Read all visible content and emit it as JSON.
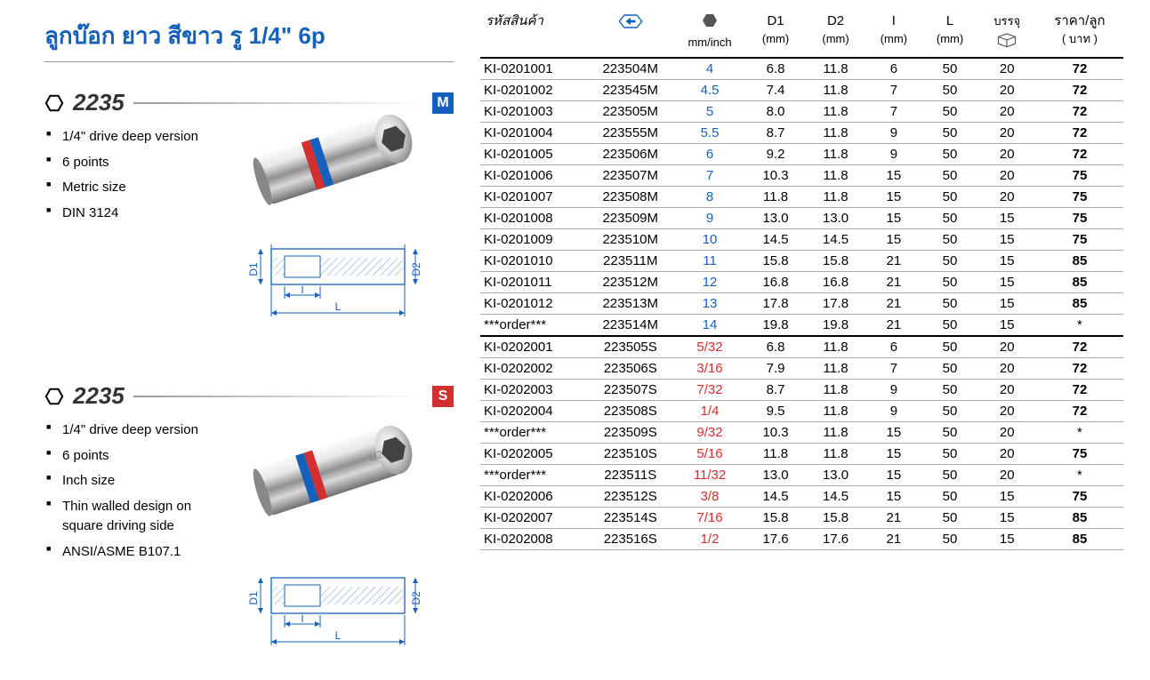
{
  "title": "ลูกบ๊อก ยาว สีขาว รู 1/4\" 6p",
  "products": [
    {
      "number": "2235",
      "badge": "M",
      "badge_class": "badge-m",
      "bullets": [
        "1/4\" drive deep version",
        "6 points",
        "Metric size",
        "DIN 3124"
      ]
    },
    {
      "number": "2235",
      "badge": "S",
      "badge_class": "badge-s",
      "bullets": [
        "1/4\" drive deep version",
        "6 points",
        "Inch size",
        "Thin walled design on square driving side",
        "ANSI/ASME B107.1"
      ]
    }
  ],
  "table": {
    "headers": {
      "code": "รหัสสินค้า",
      "size_top": "",
      "size_sub": "mm/inch",
      "d1": "D1",
      "d1_sub": "(mm)",
      "d2": "D2",
      "d2_sub": "(mm)",
      "i": "I",
      "i_sub": "(mm)",
      "l": "L",
      "l_sub": "(mm)",
      "pack": "บรรจุ",
      "price": "ราคา/ลูก",
      "price_sub": "( บาท )"
    },
    "rows_metric": [
      {
        "code": "KI-0201001",
        "pn": "223504M",
        "size": "4",
        "d1": "6.8",
        "d2": "11.8",
        "i": "6",
        "l": "50",
        "pack": "20",
        "price": "72"
      },
      {
        "code": "KI-0201002",
        "pn": "223545M",
        "size": "4.5",
        "d1": "7.4",
        "d2": "11.8",
        "i": "7",
        "l": "50",
        "pack": "20",
        "price": "72"
      },
      {
        "code": "KI-0201003",
        "pn": "223505M",
        "size": "5",
        "d1": "8.0",
        "d2": "11.8",
        "i": "7",
        "l": "50",
        "pack": "20",
        "price": "72"
      },
      {
        "code": "KI-0201004",
        "pn": "223555M",
        "size": "5.5",
        "d1": "8.7",
        "d2": "11.8",
        "i": "9",
        "l": "50",
        "pack": "20",
        "price": "72"
      },
      {
        "code": "KI-0201005",
        "pn": "223506M",
        "size": "6",
        "d1": "9.2",
        "d2": "11.8",
        "i": "9",
        "l": "50",
        "pack": "20",
        "price": "72"
      },
      {
        "code": "KI-0201006",
        "pn": "223507M",
        "size": "7",
        "d1": "10.3",
        "d2": "11.8",
        "i": "15",
        "l": "50",
        "pack": "20",
        "price": "75"
      },
      {
        "code": "KI-0201007",
        "pn": "223508M",
        "size": "8",
        "d1": "11.8",
        "d2": "11.8",
        "i": "15",
        "l": "50",
        "pack": "20",
        "price": "75"
      },
      {
        "code": "KI-0201008",
        "pn": "223509M",
        "size": "9",
        "d1": "13.0",
        "d2": "13.0",
        "i": "15",
        "l": "50",
        "pack": "15",
        "price": "75"
      },
      {
        "code": "KI-0201009",
        "pn": "223510M",
        "size": "10",
        "d1": "14.5",
        "d2": "14.5",
        "i": "15",
        "l": "50",
        "pack": "15",
        "price": "75"
      },
      {
        "code": "KI-0201010",
        "pn": "223511M",
        "size": "11",
        "d1": "15.8",
        "d2": "15.8",
        "i": "21",
        "l": "50",
        "pack": "15",
        "price": "85"
      },
      {
        "code": "KI-0201011",
        "pn": "223512M",
        "size": "12",
        "d1": "16.8",
        "d2": "16.8",
        "i": "21",
        "l": "50",
        "pack": "15",
        "price": "85"
      },
      {
        "code": "KI-0201012",
        "pn": "223513M",
        "size": "13",
        "d1": "17.8",
        "d2": "17.8",
        "i": "21",
        "l": "50",
        "pack": "15",
        "price": "85"
      },
      {
        "code": "***order***",
        "pn": "223514M",
        "size": "14",
        "d1": "19.8",
        "d2": "19.8",
        "i": "21",
        "l": "50",
        "pack": "15",
        "price": "*"
      }
    ],
    "rows_inch": [
      {
        "code": "KI-0202001",
        "pn": "223505S",
        "size": "5/32",
        "d1": "6.8",
        "d2": "11.8",
        "i": "6",
        "l": "50",
        "pack": "20",
        "price": "72"
      },
      {
        "code": "KI-0202002",
        "pn": "223506S",
        "size": "3/16",
        "d1": "7.9",
        "d2": "11.8",
        "i": "7",
        "l": "50",
        "pack": "20",
        "price": "72"
      },
      {
        "code": "KI-0202003",
        "pn": "223507S",
        "size": "7/32",
        "d1": "8.7",
        "d2": "11.8",
        "i": "9",
        "l": "50",
        "pack": "20",
        "price": "72"
      },
      {
        "code": "KI-0202004",
        "pn": "223508S",
        "size": "1/4",
        "d1": "9.5",
        "d2": "11.8",
        "i": "9",
        "l": "50",
        "pack": "20",
        "price": "72"
      },
      {
        "code": "***order***",
        "pn": "223509S",
        "size": "9/32",
        "d1": "10.3",
        "d2": "11.8",
        "i": "15",
        "l": "50",
        "pack": "20",
        "price": "*"
      },
      {
        "code": "KI-0202005",
        "pn": "223510S",
        "size": "5/16",
        "d1": "11.8",
        "d2": "11.8",
        "i": "15",
        "l": "50",
        "pack": "20",
        "price": "75"
      },
      {
        "code": "***order***",
        "pn": "223511S",
        "size": "11/32",
        "d1": "13.0",
        "d2": "13.0",
        "i": "15",
        "l": "50",
        "pack": "20",
        "price": "*"
      },
      {
        "code": "KI-0202006",
        "pn": "223512S",
        "size": "3/8",
        "d1": "14.5",
        "d2": "14.5",
        "i": "15",
        "l": "50",
        "pack": "15",
        "price": "75"
      },
      {
        "code": "KI-0202007",
        "pn": "223514S",
        "size": "7/16",
        "d1": "15.8",
        "d2": "15.8",
        "i": "21",
        "l": "50",
        "pack": "15",
        "price": "85"
      },
      {
        "code": "KI-0202008",
        "pn": "223516S",
        "size": "1/2",
        "d1": "17.6",
        "d2": "17.6",
        "i": "21",
        "l": "50",
        "pack": "15",
        "price": "85"
      }
    ]
  },
  "colors": {
    "blue": "#1560bd",
    "red": "#d32f2f",
    "chrome_light": "#f5f5f5",
    "chrome_mid": "#c8c8c8",
    "chrome_dark": "#808080"
  },
  "diagram_labels": {
    "d1": "D1",
    "d2": "D2",
    "i": "I",
    "l": "L"
  }
}
